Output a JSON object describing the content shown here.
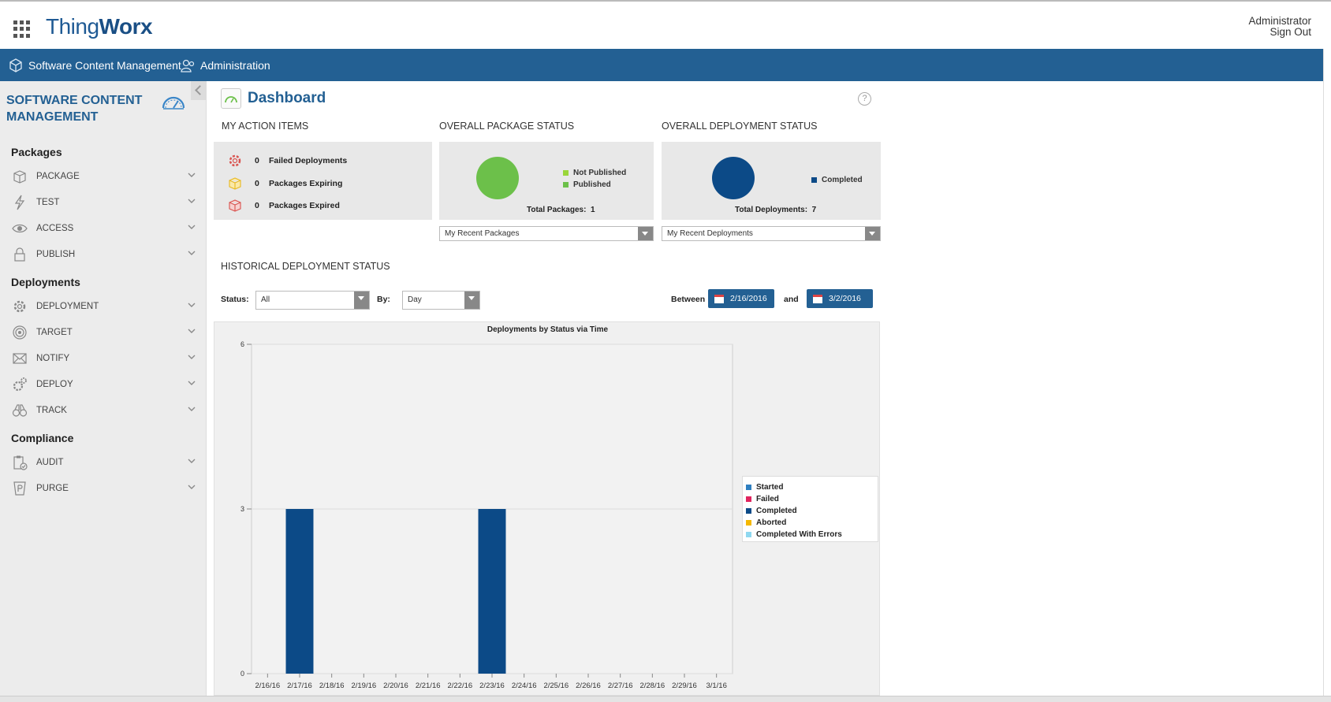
{
  "header": {
    "logo_prefix": "Thing",
    "logo_suffix": "Worx",
    "user_name": "Administrator",
    "sign_out": "Sign Out"
  },
  "nav": {
    "items": [
      {
        "label": "Software Content Management",
        "icon": "box-icon"
      },
      {
        "label": "Administration",
        "icon": "admin-users-icon"
      }
    ]
  },
  "sidebar": {
    "title_line1": "SOFTWARE CONTENT",
    "title_line2": "MANAGEMENT",
    "sections": [
      {
        "title": "Packages",
        "items": [
          {
            "label": "PACKAGE",
            "icon": "package-icon"
          },
          {
            "label": "TEST",
            "icon": "lightning-icon"
          },
          {
            "label": "ACCESS",
            "icon": "eye-icon"
          },
          {
            "label": "PUBLISH",
            "icon": "lock-icon"
          }
        ]
      },
      {
        "title": "Deployments",
        "items": [
          {
            "label": "DEPLOYMENT",
            "icon": "gear-icon"
          },
          {
            "label": "TARGET",
            "icon": "target-icon"
          },
          {
            "label": "NOTIFY",
            "icon": "envelope-icon"
          },
          {
            "label": "DEPLOY",
            "icon": "gears-icon"
          },
          {
            "label": "TRACK",
            "icon": "binoculars-icon"
          }
        ]
      },
      {
        "title": "Compliance",
        "items": [
          {
            "label": "AUDIT",
            "icon": "clipboard-check-icon"
          },
          {
            "label": "PURGE",
            "icon": "purge-bin-icon"
          }
        ]
      }
    ]
  },
  "dashboard": {
    "title": "Dashboard",
    "help": "?",
    "action_items": {
      "label": "MY ACTION ITEMS",
      "rows": [
        {
          "count": "0",
          "label": "Failed Deployments",
          "color": "#d9534f"
        },
        {
          "count": "0",
          "label": "Packages Expiring",
          "color": "#f0c419"
        },
        {
          "count": "0",
          "label": "Packages Expired",
          "color": "#d9534f"
        }
      ]
    },
    "package_status": {
      "label": "OVERALL PACKAGE STATUS",
      "legend": [
        {
          "label": "Not Published",
          "color": "#9ad63a"
        },
        {
          "label": "Published",
          "color": "#6cc04a"
        }
      ],
      "total_label": "Total Packages:",
      "total_value": "1",
      "dropdown": "My Recent Packages",
      "pie_color": "#6cc04a"
    },
    "deployment_status": {
      "label": "OVERALL DEPLOYMENT STATUS",
      "legend": [
        {
          "label": "Completed",
          "color": "#0c4a87"
        }
      ],
      "total_label": "Total Deployments:",
      "total_value": "7",
      "dropdown": "My Recent Deployments",
      "pie_color": "#0c4a87"
    },
    "historical": {
      "label": "HISTORICAL DEPLOYMENT STATUS",
      "status_label": "Status:",
      "status_value": "All",
      "by_label": "By:",
      "by_value": "Day",
      "between_label": "Between",
      "and_label": "and",
      "start_date": "2/16/2016",
      "end_date": "3/2/2016"
    }
  },
  "chart_data": {
    "type": "bar",
    "title": "Deployments by Status via Time",
    "categories": [
      "2/16/16",
      "2/17/16",
      "2/18/16",
      "2/19/16",
      "2/20/16",
      "2/21/16",
      "2/22/16",
      "2/23/16",
      "2/24/16",
      "2/25/16",
      "2/26/16",
      "2/27/16",
      "2/28/16",
      "2/29/16",
      "3/1/16"
    ],
    "series": [
      {
        "name": "Started",
        "color": "#2f7fc1",
        "values": [
          0,
          0,
          0,
          0,
          0,
          0,
          0,
          0,
          0,
          0,
          0,
          0,
          0,
          0,
          0
        ]
      },
      {
        "name": "Failed",
        "color": "#e0245e",
        "values": [
          0,
          0,
          0,
          0,
          0,
          0,
          0,
          0,
          0,
          0,
          0,
          0,
          0,
          0,
          0
        ]
      },
      {
        "name": "Completed",
        "color": "#0c4a87",
        "values": [
          0,
          3,
          0,
          0,
          0,
          0,
          0,
          3,
          0,
          0,
          0,
          0,
          0,
          0,
          0
        ]
      },
      {
        "name": "Aborted",
        "color": "#f5b800",
        "values": [
          0,
          0,
          0,
          0,
          0,
          0,
          0,
          0,
          0,
          0,
          0,
          0,
          0,
          0,
          0
        ]
      },
      {
        "name": "Completed With Errors",
        "color": "#8fd8f0",
        "values": [
          0,
          0,
          0,
          0,
          0,
          0,
          0,
          0,
          0,
          0,
          0,
          0,
          0,
          0,
          0
        ]
      }
    ],
    "ylim": [
      0,
      6
    ],
    "yticks": [
      "0",
      "3",
      "6"
    ],
    "legend_position": "right",
    "grid": true
  }
}
